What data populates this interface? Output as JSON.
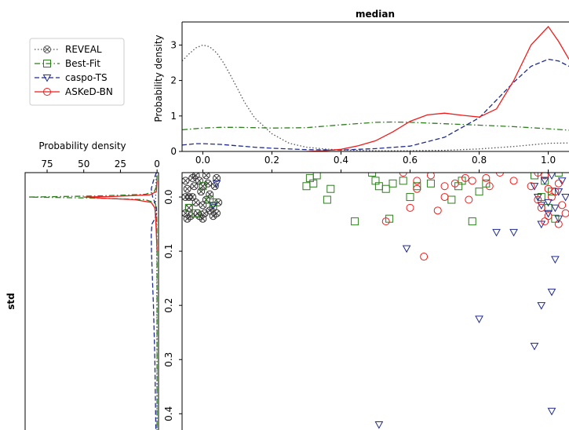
{
  "chart_data": [
    {
      "panel": "top",
      "type": "line",
      "title": "median",
      "xlabel": "",
      "ylabel": "Probability density",
      "xlim": [
        -0.06,
        1.06
      ],
      "ylim": [
        0,
        3.65
      ],
      "x_ticks": [
        "0.0",
        "0.2",
        "0.4",
        "0.6",
        "0.8",
        "1.0"
      ],
      "x_tick_values": [
        0.0,
        0.2,
        0.4,
        0.6,
        0.8,
        1.0
      ],
      "y_ticks": [
        "0",
        "1",
        "2",
        "3"
      ],
      "y_tick_values": [
        0,
        1,
        2,
        3
      ],
      "series": [
        {
          "name": "REVEAL",
          "color": "#555555",
          "style": "dotted",
          "x": [
            -0.06,
            -0.04,
            -0.02,
            0.0,
            0.02,
            0.04,
            0.06,
            0.08,
            0.1,
            0.12,
            0.15,
            0.2,
            0.25,
            0.3,
            0.35,
            0.4,
            0.5,
            0.6,
            0.7,
            0.8,
            0.9,
            1.0,
            1.06
          ],
          "y": [
            2.55,
            2.75,
            2.92,
            3.0,
            2.95,
            2.78,
            2.5,
            2.15,
            1.78,
            1.4,
            0.95,
            0.5,
            0.23,
            0.12,
            0.07,
            0.04,
            0.02,
            0.02,
            0.03,
            0.07,
            0.14,
            0.23,
            0.24
          ]
        },
        {
          "name": "Best-Fit",
          "color": "#2e7d1e",
          "style": "dashdot",
          "x": [
            -0.06,
            0.0,
            0.05,
            0.1,
            0.15,
            0.2,
            0.3,
            0.4,
            0.5,
            0.55,
            0.6,
            0.7,
            0.8,
            0.9,
            1.0,
            1.06
          ],
          "y": [
            0.61,
            0.66,
            0.68,
            0.68,
            0.67,
            0.66,
            0.67,
            0.75,
            0.82,
            0.83,
            0.82,
            0.78,
            0.74,
            0.7,
            0.64,
            0.6
          ]
        },
        {
          "name": "caspo-TS",
          "color": "#1f2b8c",
          "style": "dashed",
          "x": [
            -0.06,
            -0.02,
            0.0,
            0.05,
            0.1,
            0.15,
            0.2,
            0.3,
            0.4,
            0.5,
            0.6,
            0.7,
            0.8,
            0.85,
            0.9,
            0.95,
            1.0,
            1.03,
            1.06
          ],
          "y": [
            0.18,
            0.22,
            0.22,
            0.2,
            0.16,
            0.12,
            0.09,
            0.05,
            0.04,
            0.08,
            0.15,
            0.4,
            0.95,
            1.45,
            1.95,
            2.4,
            2.6,
            2.55,
            2.4
          ]
        },
        {
          "name": "ASKeD-BN",
          "color": "#ee1c1c",
          "style": "solid",
          "x": [
            0.3,
            0.35,
            0.4,
            0.45,
            0.5,
            0.55,
            0.6,
            0.65,
            0.7,
            0.75,
            0.8,
            0.85,
            0.9,
            0.95,
            1.0,
            1.03,
            1.06
          ],
          "y": [
            0.0,
            0.02,
            0.06,
            0.16,
            0.3,
            0.55,
            0.85,
            1.03,
            1.08,
            1.02,
            0.97,
            1.2,
            2.0,
            3.0,
            3.52,
            3.1,
            2.6
          ]
        }
      ]
    },
    {
      "panel": "left",
      "type": "line",
      "title": "",
      "xlabel": "Probability density",
      "ylabel": "std",
      "x_ticks": [
        "75",
        "50",
        "25",
        "0"
      ],
      "x_tick_values": [
        75,
        50,
        25,
        0
      ],
      "xlim": [
        90,
        -1
      ],
      "ylim": [
        -0.045,
        0.43
      ],
      "series": [
        {
          "name": "REVEAL",
          "color": "#555555",
          "style": "dotted",
          "y": [
            -0.045,
            0.0,
            0.02,
            0.05,
            0.1,
            0.2,
            0.3,
            0.43
          ],
          "x": [
            0.5,
            1.0,
            1.0,
            0.5,
            0.2,
            0.1,
            0.05,
            0.0
          ]
        },
        {
          "name": "Best-Fit",
          "color": "#2e7d1e",
          "style": "dashdot",
          "y": [
            -0.04,
            -0.02,
            -0.01,
            -0.005,
            -0.002,
            0.0,
            0.002,
            0.005,
            0.01,
            0.02,
            0.05,
            0.08,
            0.1,
            0.2,
            0.43
          ],
          "x": [
            0.0,
            0.3,
            2,
            8,
            40,
            88,
            40,
            8,
            2,
            0.4,
            0.1,
            0.05,
            0.02,
            0.01,
            0.0
          ]
        },
        {
          "name": "caspo-TS",
          "color": "#1f2b8c",
          "style": "dashed",
          "y": [
            -0.045,
            -0.03,
            -0.015,
            0.0,
            0.01,
            0.02,
            0.03,
            0.04,
            0.05,
            0.07,
            0.1,
            0.15,
            0.2,
            0.3,
            0.43
          ],
          "x": [
            0.5,
            2.5,
            4,
            3,
            1.5,
            0.5,
            0.3,
            1.5,
            3.5,
            4.0,
            3.8,
            3.2,
            2.5,
            1.5,
            0.8
          ]
        },
        {
          "name": "ASKeD-BN",
          "color": "#ee1c1c",
          "style": "solid",
          "y": [
            -0.03,
            -0.01,
            -0.004,
            -0.001,
            0.0,
            0.002,
            0.005,
            0.01,
            0.02,
            0.04,
            0.06,
            0.08,
            0.1
          ],
          "x": [
            0.0,
            0.5,
            5,
            30,
            50,
            38,
            15,
            4,
            1.5,
            1.0,
            0.6,
            0.3,
            0.0
          ]
        }
      ]
    },
    {
      "panel": "scatter",
      "type": "scatter",
      "title": "",
      "xlim": [
        -0.06,
        1.06
      ],
      "ylim": [
        -0.045,
        0.43
      ],
      "y_ticks": [
        "0.0",
        "0.1",
        "0.2",
        "0.3",
        "0.4"
      ],
      "y_tick_values": [
        0.0,
        0.1,
        0.2,
        0.3,
        0.4
      ],
      "series": [
        {
          "name": "REVEAL",
          "color": "#333333",
          "marker": "x-circle",
          "points": [
            [
              -0.05,
              -0.03
            ],
            [
              -0.045,
              -0.015
            ],
            [
              -0.05,
              0.0
            ],
            [
              -0.04,
              0.02
            ],
            [
              -0.035,
              0.035
            ],
            [
              -0.03,
              -0.035
            ],
            [
              -0.025,
              -0.02
            ],
            [
              -0.02,
              0.01
            ],
            [
              -0.015,
              0.03
            ],
            [
              -0.01,
              -0.03
            ],
            [
              -0.005,
              -0.01
            ],
            [
              0.0,
              0.015
            ],
            [
              0.0,
              0.04
            ],
            [
              0.01,
              -0.04
            ],
            [
              0.015,
              -0.025
            ],
            [
              0.02,
              0.025
            ],
            [
              0.02,
              -0.005
            ],
            [
              0.03,
              0.02
            ],
            [
              0.03,
              0.035
            ],
            [
              0.04,
              -0.035
            ],
            [
              -0.04,
              0.0
            ],
            [
              -0.02,
              -0.04
            ],
            [
              -0.05,
              0.03
            ],
            [
              0.005,
              0.03
            ],
            [
              -0.03,
              0.0
            ],
            [
              0.035,
              -0.02
            ],
            [
              0.01,
              0.005
            ],
            [
              -0.01,
              0.035
            ],
            [
              0.04,
              0.03
            ],
            [
              0.045,
              0.01
            ],
            [
              -0.045,
              0.04
            ],
            [
              0.0,
              -0.02
            ]
          ]
        },
        {
          "name": "Best-Fit",
          "color": "#2e7d1e",
          "marker": "square",
          "points": [
            [
              0.3,
              -0.02
            ],
            [
              0.32,
              -0.025
            ],
            [
              0.31,
              -0.035
            ],
            [
              0.33,
              -0.04
            ],
            [
              0.36,
              0.005
            ],
            [
              0.37,
              -0.015
            ],
            [
              0.44,
              0.045
            ],
            [
              0.49,
              -0.045
            ],
            [
              0.5,
              -0.03
            ],
            [
              0.51,
              -0.02
            ],
            [
              0.53,
              -0.015
            ],
            [
              0.54,
              0.04
            ],
            [
              0.55,
              -0.025
            ],
            [
              0.58,
              -0.03
            ],
            [
              0.6,
              0.0
            ],
            [
              0.62,
              -0.02
            ],
            [
              0.66,
              -0.025
            ],
            [
              0.72,
              0.005
            ],
            [
              0.74,
              -0.02
            ],
            [
              0.75,
              -0.03
            ],
            [
              0.78,
              0.045
            ],
            [
              0.8,
              -0.01
            ],
            [
              0.82,
              -0.025
            ],
            [
              0.96,
              -0.04
            ],
            [
              0.98,
              0.0
            ],
            [
              0.99,
              -0.03
            ],
            [
              1.0,
              0.02
            ],
            [
              1.01,
              -0.01
            ],
            [
              1.02,
              0.04
            ],
            [
              1.03,
              -0.045
            ],
            [
              0.0,
              -0.02
            ],
            [
              0.02,
              0.005
            ],
            [
              0.03,
              0.01
            ],
            [
              -0.02,
              0.03
            ],
            [
              -0.04,
              0.02
            ]
          ]
        },
        {
          "name": "caspo-TS",
          "color": "#1f2b8c",
          "marker": "triangle_down",
          "points": [
            [
              0.59,
              0.095
            ],
            [
              0.8,
              0.225
            ],
            [
              0.85,
              0.065
            ],
            [
              0.9,
              0.065
            ],
            [
              0.96,
              -0.02
            ],
            [
              0.97,
              0.0
            ],
            [
              0.98,
              0.015
            ],
            [
              0.99,
              -0.03
            ],
            [
              1.0,
              0.01
            ],
            [
              1.01,
              -0.04
            ],
            [
              1.02,
              0.02
            ],
            [
              1.03,
              0.04
            ],
            [
              1.04,
              -0.03
            ],
            [
              1.05,
              0.0
            ],
            [
              1.0,
              0.03
            ],
            [
              1.01,
              0.175
            ],
            [
              1.02,
              0.115
            ],
            [
              0.98,
              0.2
            ],
            [
              0.96,
              0.275
            ],
            [
              1.01,
              0.395
            ],
            [
              0.51,
              0.42
            ],
            [
              0.98,
              0.05
            ],
            [
              1.03,
              -0.01
            ],
            [
              0.04,
              -0.025
            ],
            [
              0.03,
              0.015
            ]
          ]
        },
        {
          "name": "ASKeD-BN",
          "color": "#ee1c1c",
          "marker": "circle",
          "points": [
            [
              0.53,
              0.045
            ],
            [
              0.58,
              -0.045
            ],
            [
              0.6,
              0.02
            ],
            [
              0.62,
              -0.03
            ],
            [
              0.62,
              -0.015
            ],
            [
              0.64,
              0.11
            ],
            [
              0.66,
              -0.04
            ],
            [
              0.68,
              0.025
            ],
            [
              0.7,
              -0.02
            ],
            [
              0.7,
              0.0
            ],
            [
              0.73,
              -0.025
            ],
            [
              0.76,
              -0.035
            ],
            [
              0.77,
              0.005
            ],
            [
              0.78,
              -0.03
            ],
            [
              0.82,
              -0.035
            ],
            [
              0.83,
              -0.02
            ],
            [
              0.86,
              -0.045
            ],
            [
              0.9,
              -0.03
            ],
            [
              0.95,
              -0.02
            ],
            [
              0.97,
              0.005
            ],
            [
              0.98,
              0.02
            ],
            [
              0.99,
              -0.04
            ],
            [
              1.0,
              0.035
            ],
            [
              1.01,
              0.0
            ],
            [
              1.02,
              -0.01
            ],
            [
              1.03,
              0.05
            ],
            [
              1.04,
              0.015
            ],
            [
              0.99,
              0.045
            ],
            [
              1.03,
              -0.025
            ],
            [
              1.05,
              0.03
            ],
            [
              0.97,
              -0.045
            ],
            [
              1.0,
              -0.015
            ]
          ]
        }
      ]
    }
  ],
  "legend": {
    "placement": "upper-left",
    "entries": [
      {
        "label": "REVEAL",
        "color": "#555555",
        "style": "dotted",
        "marker": "x-circle"
      },
      {
        "label": "Best-Fit",
        "color": "#2e7d1e",
        "style": "dashdot",
        "marker": "square"
      },
      {
        "label": "caspo-TS",
        "color": "#1f2b8c",
        "style": "dashed",
        "marker": "triangle_down"
      },
      {
        "label": "ASKeD-BN",
        "color": "#ee1c1c",
        "style": "solid",
        "marker": "circle"
      }
    ]
  }
}
